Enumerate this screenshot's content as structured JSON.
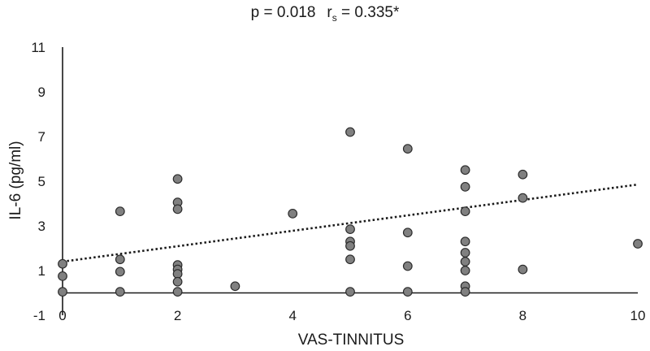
{
  "chart_data": {
    "type": "scatter",
    "title": "",
    "annotation": {
      "p_text": "p = 0.018",
      "r_main": "r",
      "r_sub": "s",
      "r_value": " = 0.335*"
    },
    "xlabel": "VAS-TINNITUS",
    "ylabel": "IL-6 (pg/ml)",
    "xlim": [
      0,
      10
    ],
    "ylim": [
      -1,
      11
    ],
    "x_ticks": [
      0,
      2,
      4,
      6,
      8,
      10
    ],
    "y_ticks": [
      -1,
      1,
      3,
      5,
      7,
      9,
      11
    ],
    "grid": false,
    "colors": {
      "point_fill": "#808080",
      "point_stroke": "#2b2b2b",
      "trend": "#1a1a1a",
      "axis": "#1a1a1a"
    },
    "points": [
      {
        "x": 0,
        "y": 1.3
      },
      {
        "x": 0,
        "y": 0.75
      },
      {
        "x": 0,
        "y": 0.05
      },
      {
        "x": 1,
        "y": 3.65
      },
      {
        "x": 1,
        "y": 1.5
      },
      {
        "x": 1,
        "y": 0.95
      },
      {
        "x": 1,
        "y": 0.05
      },
      {
        "x": 2,
        "y": 5.1
      },
      {
        "x": 2,
        "y": 4.05
      },
      {
        "x": 2,
        "y": 3.75
      },
      {
        "x": 2,
        "y": 1.25
      },
      {
        "x": 2,
        "y": 1.05
      },
      {
        "x": 2,
        "y": 0.85
      },
      {
        "x": 2,
        "y": 0.5
      },
      {
        "x": 2,
        "y": 0.05
      },
      {
        "x": 3,
        "y": 0.3
      },
      {
        "x": 4,
        "y": 3.55
      },
      {
        "x": 5,
        "y": 7.2
      },
      {
        "x": 5,
        "y": 2.85
      },
      {
        "x": 5,
        "y": 2.3
      },
      {
        "x": 5,
        "y": 2.1
      },
      {
        "x": 5,
        "y": 1.5
      },
      {
        "x": 5,
        "y": 0.05
      },
      {
        "x": 6,
        "y": 6.45
      },
      {
        "x": 6,
        "y": 2.7
      },
      {
        "x": 6,
        "y": 1.2
      },
      {
        "x": 6,
        "y": 0.05
      },
      {
        "x": 7,
        "y": 5.5
      },
      {
        "x": 7,
        "y": 4.75
      },
      {
        "x": 7,
        "y": 3.65
      },
      {
        "x": 7,
        "y": 2.3
      },
      {
        "x": 7,
        "y": 1.8
      },
      {
        "x": 7,
        "y": 1.4
      },
      {
        "x": 7,
        "y": 1.0
      },
      {
        "x": 7,
        "y": 0.3
      },
      {
        "x": 7,
        "y": 0.05
      },
      {
        "x": 8,
        "y": 5.3
      },
      {
        "x": 8,
        "y": 4.25
      },
      {
        "x": 8,
        "y": 1.05
      },
      {
        "x": 10,
        "y": 2.2
      }
    ],
    "trendline": {
      "style": "dotted",
      "x": [
        0,
        10
      ],
      "y": [
        1.4,
        4.85
      ]
    }
  }
}
